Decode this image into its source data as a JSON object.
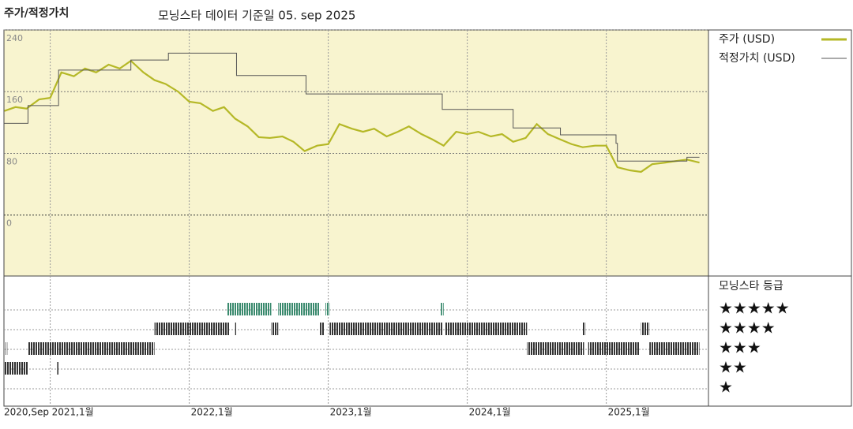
{
  "chart_data": {
    "type": "line",
    "title": "주가/적정가치",
    "subtitle": "모닝스타 데이터 기준일 05. sep 2025",
    "xlim": [
      2020.667,
      2025.735
    ],
    "xticks": [
      {
        "value": 2020.667,
        "label": "2020,Sep"
      },
      {
        "value": 2021,
        "label": "2021,1월"
      },
      {
        "value": 2022,
        "label": "2022,1월"
      },
      {
        "value": 2023,
        "label": "2023,1월"
      },
      {
        "value": 2024,
        "label": "2024,1월"
      },
      {
        "value": 2025,
        "label": "2025,1월"
      }
    ],
    "ylim": [
      -79,
      240
    ],
    "yticks": [
      0,
      80,
      160,
      240
    ],
    "grid": true,
    "series": [
      {
        "name": "주가 (USD)",
        "color": "#b5b827",
        "drawstyle": "line",
        "x": [
          2020.67,
          2020.75,
          2020.83,
          2020.92,
          2021.0,
          2021.08,
          2021.17,
          2021.25,
          2021.33,
          2021.42,
          2021.5,
          2021.58,
          2021.67,
          2021.75,
          2021.83,
          2021.92,
          2022.0,
          2022.08,
          2022.17,
          2022.25,
          2022.33,
          2022.42,
          2022.5,
          2022.58,
          2022.67,
          2022.75,
          2022.83,
          2022.92,
          2023.0,
          2023.08,
          2023.17,
          2023.25,
          2023.33,
          2023.42,
          2023.5,
          2023.58,
          2023.67,
          2023.75,
          2023.83,
          2023.92,
          2024.0,
          2024.08,
          2024.17,
          2024.25,
          2024.33,
          2024.42,
          2024.5,
          2024.58,
          2024.67,
          2024.75,
          2024.83,
          2024.92,
          2025.0,
          2025.08,
          2025.17,
          2025.25,
          2025.33,
          2025.42,
          2025.5,
          2025.58,
          2025.67
        ],
        "values": [
          135,
          140,
          138,
          150,
          152,
          185,
          180,
          190,
          185,
          195,
          190,
          200,
          185,
          175,
          170,
          160,
          147,
          145,
          135,
          140,
          125,
          115,
          101,
          100,
          102,
          95,
          83,
          90,
          92,
          118,
          112,
          108,
          112,
          102,
          108,
          115,
          105,
          98,
          90,
          108,
          105,
          108,
          102,
          105,
          95,
          100,
          118,
          105,
          98,
          92,
          88,
          90,
          90,
          62,
          58,
          56,
          66,
          68,
          70,
          72,
          68
        ]
      },
      {
        "name": "적정가치 (USD)",
        "color": "#555555",
        "drawstyle": "steps-post",
        "x": [
          2020.67,
          2020.84,
          2021.06,
          2021.58,
          2021.85,
          2022.34,
          2022.84,
          2023.82,
          2024.33,
          2024.67,
          2025.07,
          2025.08,
          2025.58,
          2025.67
        ],
        "values": [
          119,
          142,
          188,
          201,
          210,
          181,
          157,
          137,
          113,
          104,
          93,
          70,
          75,
          75
        ]
      }
    ],
    "ratings": {
      "title": "모닝스타 등급",
      "labels": [
        "★★★★★",
        "★★★★",
        "★★★",
        "★★",
        "★"
      ],
      "label_values": [
        5,
        4,
        3,
        2,
        1
      ],
      "colors": {
        "high": "#3a8a6e",
        "other": "#333333"
      },
      "start": [
        2020.67,
        2021.05,
        2020.68,
        2020.84,
        2024.43,
        2024.87,
        2025.31,
        2021.75,
        2022.33,
        2022.59,
        2022.94,
        2023.01,
        2023.84,
        2024.83,
        2025.25,
        2022.27,
        2022.64,
        2022.98,
        2023.81
      ],
      "end": [
        2020.84,
        2021.06,
        2020.69,
        2021.75,
        2024.84,
        2025.24,
        2025.67,
        2022.29,
        2022.34,
        2022.64,
        2022.97,
        2023.82,
        2024.43,
        2024.85,
        2025.31,
        2022.59,
        2022.94,
        2023.01,
        2023.83
      ],
      "values": [
        2,
        2,
        3,
        3,
        3,
        3,
        3,
        4,
        4,
        4,
        4,
        4,
        4,
        4,
        4,
        5,
        5,
        5,
        5
      ]
    }
  }
}
